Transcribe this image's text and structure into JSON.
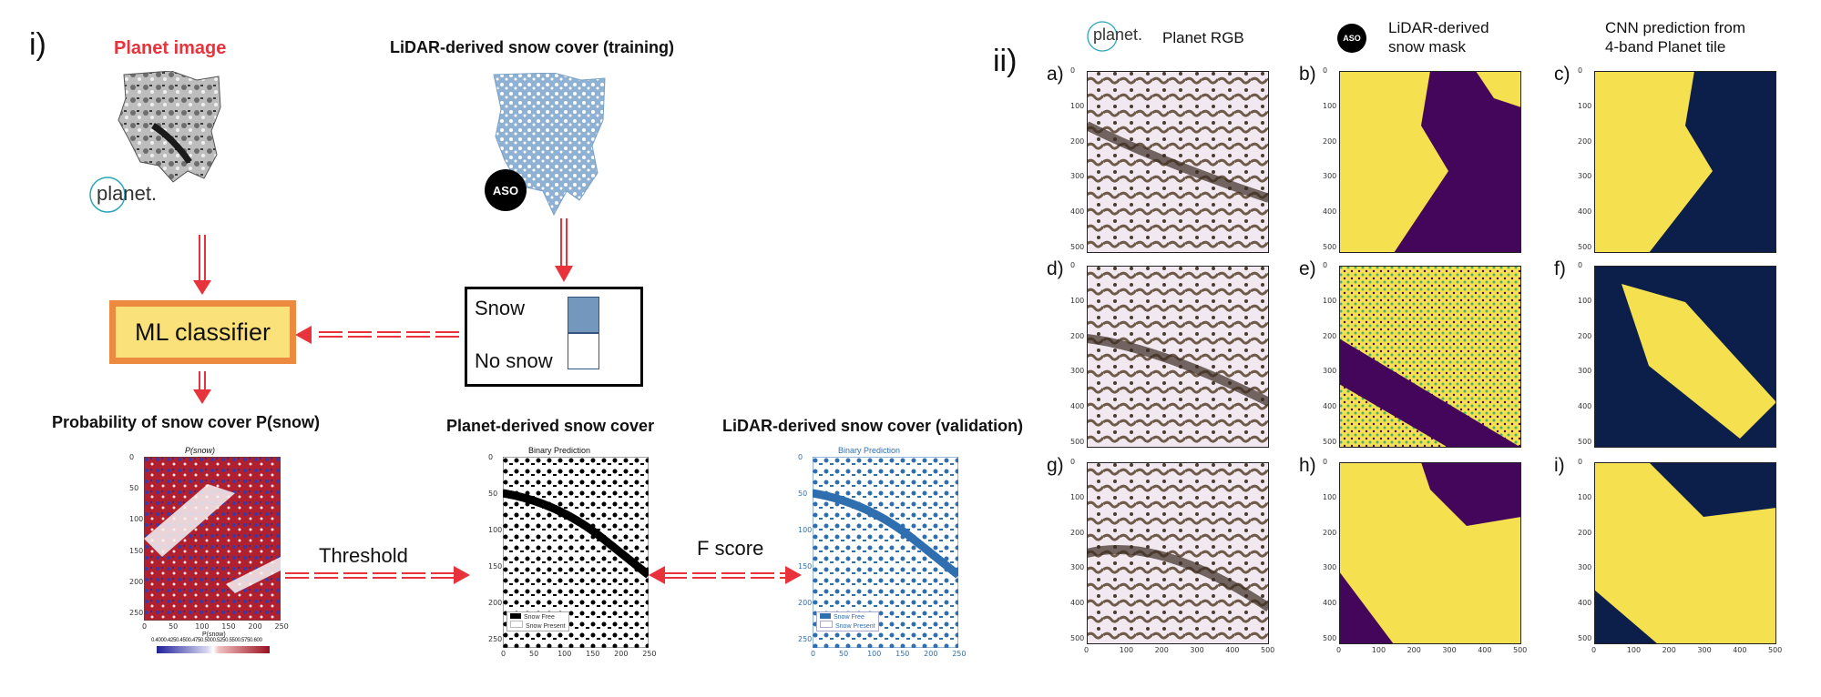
{
  "part_i": {
    "label": "i)",
    "planet_image_title": "Planet image",
    "planet_logo_text": "planet.",
    "lidar_training_title": "LiDAR-derived snow cover (training)",
    "aso_badge": "ASO",
    "legend": {
      "snow": "Snow",
      "no_snow": "No snow"
    },
    "classifier": "ML classifier",
    "prob_title": "Probability of snow cover P(snow)",
    "prob_plot_title": "P(snow)",
    "prob_cbar_label": "P(snow)",
    "prob_cbar_ticks": "0.4000.4250.4500.4750.5000.5250.5500.5750.600",
    "planet_derived_title": "Planet-derived snow cover",
    "lidar_validation_title": "LiDAR-derived snow cover (validation)",
    "binary_title": "Binary Prediction",
    "binary_legend": [
      "Snow Free",
      "Snow Present"
    ],
    "threshold": "Threshold",
    "fscore": "F score",
    "y_ticks": [
      "0",
      "50",
      "100",
      "150",
      "200",
      "250"
    ],
    "x_ticks": [
      "0",
      "50",
      "100",
      "150",
      "200",
      "250"
    ]
  },
  "part_ii": {
    "label": "ii)",
    "col_headers": [
      "Planet RGB",
      "LiDAR-derived\nsnow mask",
      "CNN prediction from\n4-band Planet tile"
    ],
    "planet_logo_text": "planet.",
    "aso_badge": "ASO",
    "panel_letters": [
      "a)",
      "b)",
      "c)",
      "d)",
      "e)",
      "f)",
      "g)",
      "h)",
      "i)"
    ],
    "y_ticks": [
      "0",
      "100",
      "200",
      "300",
      "400",
      "500"
    ],
    "x_ticks": [
      "0",
      "100",
      "200",
      "300",
      "400",
      "500"
    ]
  },
  "colors": {
    "arrow_red": "#e8323c",
    "classifier_fill": "#fbe17a",
    "classifier_border": "#ec8a3f",
    "snow_blue": "#7397bd",
    "viridis_yellow": "#f5e050",
    "viridis_purple": "#44065a",
    "navy": "#0b1f4a",
    "title_red": "#e8323c"
  }
}
